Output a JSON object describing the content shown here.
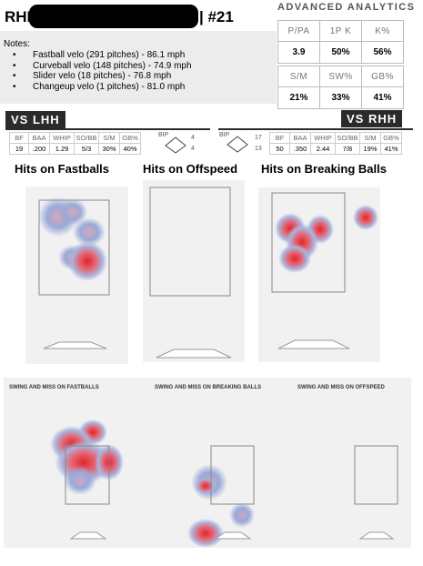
{
  "header": {
    "title_left": "RHP",
    "title_right": "| #21"
  },
  "notes": {
    "title": "Notes:",
    "items": [
      "Fastball velo (291 pitches) - 86.1 mph",
      "Curveball velo (148 pitches) - 74.9 mph",
      "Slider velo (18 pitches) - 76.8 mph",
      "Changeup velo (1 pitches) - 81.0 mph"
    ]
  },
  "advanced_analytics": {
    "title": "ADVANCED ANALYTICS",
    "row1_headers": [
      "P/PA",
      "1P K",
      "K%"
    ],
    "row1_values": [
      "3.9",
      "50%",
      "56%"
    ],
    "row2_headers": [
      "S/M",
      "SW%",
      "GB%"
    ],
    "row2_values": [
      "21%",
      "33%",
      "41%"
    ]
  },
  "vs_lhh": {
    "label": "VS LHH",
    "headers": [
      "BF",
      "BAA",
      "WHIP",
      "SO/BB",
      "S/M",
      "GB%"
    ],
    "values": [
      "19",
      ".200",
      "1.29",
      "5/3",
      "30%",
      "40%"
    ],
    "bip_label": "BIP",
    "bip_top": "4",
    "bip_bottom": "4"
  },
  "vs_rhh": {
    "label": "VS RHH",
    "headers": [
      "BF",
      "BAA",
      "WHIP",
      "SO/BB",
      "S/M",
      "GB%"
    ],
    "values": [
      "50",
      ".350",
      "2.44",
      "7/8",
      "19%",
      "41%"
    ],
    "bip_label": "BIP",
    "bip_top": "17",
    "bip_bottom": "13"
  },
  "hit_sections": {
    "fastballs": "Hits on Fastballs",
    "offspeed": "Hits on Offspeed",
    "breaking": "Hits on Breaking Balls"
  },
  "swing_miss_sections": {
    "fastballs": "SWING AND MISS ON FASTBALLS",
    "breaking": "SWING AND MISS ON BREAKING BALLS",
    "offspeed": "SWING AND MISS ON OFFSPEED"
  },
  "colors": {
    "heat_hot": "#e0262b",
    "heat_cool": "#7f95cc",
    "badge": "#2b2b2b"
  }
}
